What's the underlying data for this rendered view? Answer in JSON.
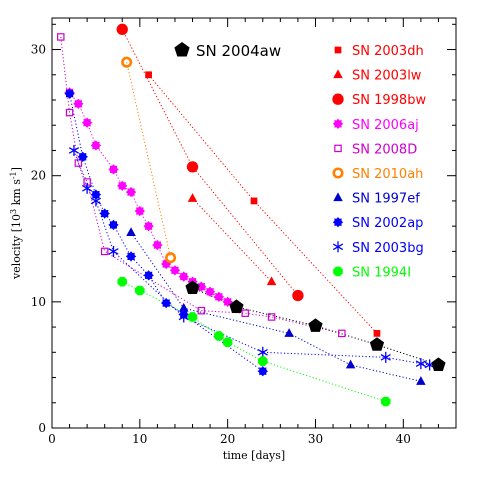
{
  "chart_data": {
    "type": "scatter",
    "title": "",
    "xlabel": "time [days]",
    "ylabel_main": "velocity [10",
    "ylabel_sup": "3",
    "ylabel_unit": " km s",
    "ylabel_sup2": "-1",
    "ylabel_end": "]",
    "xlim": [
      0,
      46
    ],
    "ylim": [
      0,
      32.5
    ],
    "xticks": [
      0,
      10,
      20,
      30,
      40
    ],
    "yticks": [
      0,
      10,
      20,
      30
    ],
    "grid": false,
    "legend_placement": "top-right",
    "featured_series": {
      "name": "SN 2004aw",
      "color": "#000000",
      "marker": "pentagon",
      "x": [
        16,
        21,
        30,
        37,
        44
      ],
      "y": [
        11.1,
        9.6,
        8.1,
        6.6,
        5.0
      ]
    },
    "series": [
      {
        "name": "SN 2003dh",
        "color": "#ff0000",
        "marker": "square",
        "x": [
          11,
          23,
          37
        ],
        "y": [
          28.0,
          18.0,
          7.5
        ]
      },
      {
        "name": "SN 2003lw",
        "color": "#ff0000",
        "marker": "triangle",
        "x": [
          16,
          25
        ],
        "y": [
          18.2,
          11.6
        ]
      },
      {
        "name": "SN 1998bw",
        "color": "#ff0000",
        "marker": "circle",
        "x": [
          8,
          16,
          28
        ],
        "y": [
          31.6,
          20.7,
          10.5
        ]
      },
      {
        "name": "SN 2006aj",
        "color": "#ff00ff",
        "marker": "star-filled",
        "x": [
          2,
          3,
          4,
          5,
          7,
          8,
          9,
          10,
          11,
          12,
          13,
          14,
          15,
          16,
          17,
          18,
          19,
          20
        ],
        "y": [
          26.6,
          25.7,
          24.2,
          22.4,
          20.5,
          19.2,
          18.7,
          17.2,
          16.0,
          14.5,
          13.0,
          12.5,
          12.0,
          11.6,
          11.2,
          10.8,
          10.4,
          10.0
        ]
      },
      {
        "name": "SN 2008D",
        "color": "#cc00cc",
        "marker": "square-open",
        "x": [
          1,
          2,
          3,
          4,
          6,
          17,
          22,
          25,
          33
        ],
        "y": [
          31.0,
          25.0,
          21.0,
          19.5,
          14.0,
          9.3,
          9.1,
          8.8,
          7.5
        ]
      },
      {
        "name": "SN 2010ah",
        "color": "#ff8000",
        "marker": "circle-open",
        "x": [
          8.5,
          13.5
        ],
        "y": [
          29.0,
          13.5
        ]
      },
      {
        "name": "SN 1997ef",
        "color": "#0000cc",
        "marker": "triangle",
        "x": [
          9,
          15,
          27,
          34,
          42
        ],
        "y": [
          15.5,
          9.5,
          7.5,
          5.0,
          3.7
        ]
      },
      {
        "name": "SN 2002ap",
        "color": "#0000ff",
        "marker": "star-filled",
        "x": [
          2,
          3.5,
          5,
          6,
          7,
          9,
          11,
          13,
          15,
          24
        ],
        "y": [
          26.5,
          21.5,
          18.5,
          17.0,
          16.1,
          13.6,
          12.1,
          9.9,
          9.0,
          4.5
        ]
      },
      {
        "name": "SN 2003bg",
        "color": "#0000ff",
        "marker": "asterisk",
        "x": [
          2.5,
          4,
          5,
          7,
          15,
          24,
          38,
          42,
          43
        ],
        "y": [
          22.0,
          19.0,
          18.0,
          14.0,
          8.8,
          6.0,
          5.6,
          5.1,
          5.0
        ]
      },
      {
        "name": "SN 1994I",
        "color": "#00ff00",
        "marker": "octagon",
        "x": [
          8,
          10,
          16,
          19,
          20,
          24,
          38
        ],
        "y": [
          11.6,
          10.9,
          8.8,
          7.3,
          6.8,
          5.3,
          2.1
        ]
      }
    ]
  }
}
